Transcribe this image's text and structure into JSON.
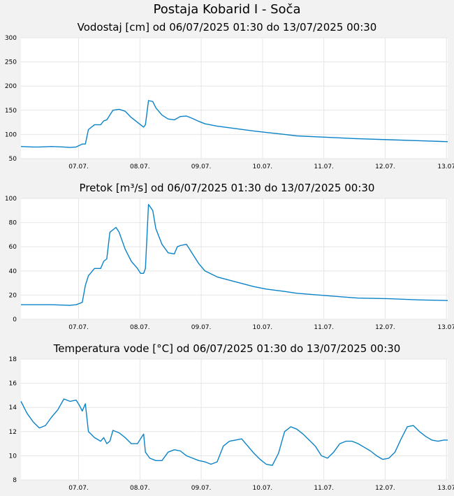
{
  "page": {
    "title": "Postaja Kobarid I - Soča"
  },
  "chart_data": [
    {
      "type": "line",
      "title": "Vodostaj [cm] od 06/07/2025 01:30 do 13/07/2025 00:30",
      "color": "#0a82c8",
      "ylim": [
        50,
        300
      ],
      "yticks": [
        50,
        100,
        150,
        200,
        250,
        300
      ],
      "xticks": [
        "07.07.",
        "08.07.",
        "09.07.",
        "10.07.",
        "11.07.",
        "12.07.",
        "13.07"
      ],
      "xtick_days": [
        0.94,
        1.94,
        2.94,
        3.94,
        4.94,
        5.94,
        6.94
      ],
      "xlim_days": [
        0,
        6.96
      ],
      "grid": true,
      "x_days": [
        0,
        0.2,
        0.3,
        0.5,
        0.7,
        0.8,
        0.9,
        0.95,
        1.0,
        1.05,
        1.1,
        1.2,
        1.3,
        1.35,
        1.4,
        1.5,
        1.6,
        1.7,
        1.8,
        1.9,
        1.95,
        2.0,
        2.03,
        2.08,
        2.15,
        2.2,
        2.3,
        2.4,
        2.5,
        2.6,
        2.7,
        2.8,
        2.9,
        3.0,
        3.2,
        3.5,
        3.8,
        4.0,
        4.3,
        4.5,
        5.0,
        5.5,
        6.0,
        6.5,
        6.96
      ],
      "values": [
        75,
        74,
        74,
        75,
        74,
        73,
        74,
        77,
        80,
        80,
        110,
        120,
        120,
        128,
        130,
        150,
        152,
        148,
        135,
        125,
        120,
        115,
        120,
        170,
        168,
        155,
        140,
        132,
        130,
        137,
        138,
        133,
        127,
        122,
        117,
        112,
        107,
        104,
        100,
        97,
        94,
        91,
        89,
        87,
        85
      ]
    },
    {
      "type": "line",
      "title": "Pretok [m³/s] od 06/07/2025 01:30 do 13/07/2025 00:30",
      "color": "#0a82c8",
      "ylim": [
        0,
        100
      ],
      "yticks": [
        0,
        20,
        40,
        60,
        80,
        100
      ],
      "xticks": [
        "07.07.",
        "08.07.",
        "09.07.",
        "10.07.",
        "11.07.",
        "12.07.",
        "13.07"
      ],
      "xtick_days": [
        0.94,
        1.94,
        2.94,
        3.94,
        4.94,
        5.94,
        6.94
      ],
      "xlim_days": [
        0,
        6.96
      ],
      "grid": true,
      "x_days": [
        0,
        0.3,
        0.5,
        0.8,
        0.9,
        0.95,
        1.0,
        1.05,
        1.1,
        1.2,
        1.3,
        1.35,
        1.4,
        1.45,
        1.55,
        1.6,
        1.7,
        1.8,
        1.9,
        1.95,
        2.0,
        2.03,
        2.08,
        2.15,
        2.2,
        2.3,
        2.4,
        2.5,
        2.55,
        2.6,
        2.7,
        2.8,
        2.9,
        3.0,
        3.2,
        3.5,
        3.8,
        4.0,
        4.3,
        4.5,
        5.0,
        5.5,
        6.0,
        6.5,
        6.96
      ],
      "values": [
        12,
        12,
        12,
        11.5,
        12,
        13,
        14,
        28,
        36,
        42,
        42,
        48,
        50,
        72,
        76,
        72,
        58,
        48,
        42,
        38,
        38,
        42,
        95,
        90,
        75,
        62,
        55,
        54,
        60,
        61,
        62,
        54,
        46,
        40,
        35,
        31,
        27,
        25,
        23,
        21.5,
        19.5,
        17.5,
        17,
        16,
        15.5
      ]
    },
    {
      "type": "line",
      "title": "Temperatura vode [°C] od 06/07/2025 01:30 do 13/07/2025 00:30",
      "color": "#0a82c8",
      "ylim": [
        8,
        18
      ],
      "yticks": [
        8,
        10,
        12,
        14,
        16,
        18
      ],
      "xticks": [
        "07.07.",
        "08.07.",
        "09.07.",
        "10.07.",
        "11.07.",
        "12.07.",
        "13.07"
      ],
      "xtick_days": [
        0.94,
        1.94,
        2.94,
        3.94,
        4.94,
        5.94,
        6.94
      ],
      "xlim_days": [
        0,
        6.96
      ],
      "grid": true,
      "x_days": [
        0,
        0.1,
        0.2,
        0.3,
        0.4,
        0.5,
        0.6,
        0.7,
        0.8,
        0.9,
        0.95,
        1.0,
        1.05,
        1.1,
        1.2,
        1.3,
        1.35,
        1.4,
        1.45,
        1.5,
        1.6,
        1.7,
        1.8,
        1.9,
        2.0,
        2.03,
        2.1,
        2.2,
        2.3,
        2.4,
        2.5,
        2.6,
        2.7,
        2.8,
        2.9,
        3.0,
        3.1,
        3.2,
        3.3,
        3.4,
        3.5,
        3.6,
        3.7,
        3.8,
        3.9,
        4.0,
        4.1,
        4.2,
        4.3,
        4.4,
        4.5,
        4.6,
        4.7,
        4.8,
        4.9,
        5.0,
        5.1,
        5.2,
        5.3,
        5.4,
        5.5,
        5.6,
        5.7,
        5.8,
        5.9,
        6.0,
        6.1,
        6.2,
        6.3,
        6.4,
        6.5,
        6.6,
        6.7,
        6.8,
        6.9,
        6.96
      ],
      "values": [
        14.5,
        13.5,
        12.8,
        12.3,
        12.5,
        13.2,
        13.8,
        14.7,
        14.5,
        14.6,
        14.2,
        13.7,
        14.3,
        12.0,
        11.5,
        11.2,
        11.5,
        11.0,
        11.2,
        12.1,
        11.9,
        11.5,
        11.0,
        11.0,
        11.8,
        10.3,
        9.8,
        9.6,
        9.6,
        10.3,
        10.5,
        10.4,
        10.0,
        9.8,
        9.6,
        9.5,
        9.3,
        9.5,
        10.8,
        11.2,
        11.3,
        11.4,
        10.8,
        10.2,
        9.7,
        9.3,
        9.2,
        10.2,
        12.0,
        12.4,
        12.2,
        11.8,
        11.3,
        10.8,
        10.0,
        9.8,
        10.3,
        11.0,
        11.2,
        11.2,
        11.0,
        10.7,
        10.4,
        10.0,
        9.7,
        9.8,
        10.3,
        11.4,
        12.4,
        12.5,
        12.0,
        11.6,
        11.3,
        11.2,
        11.3,
        11.3
      ]
    }
  ]
}
